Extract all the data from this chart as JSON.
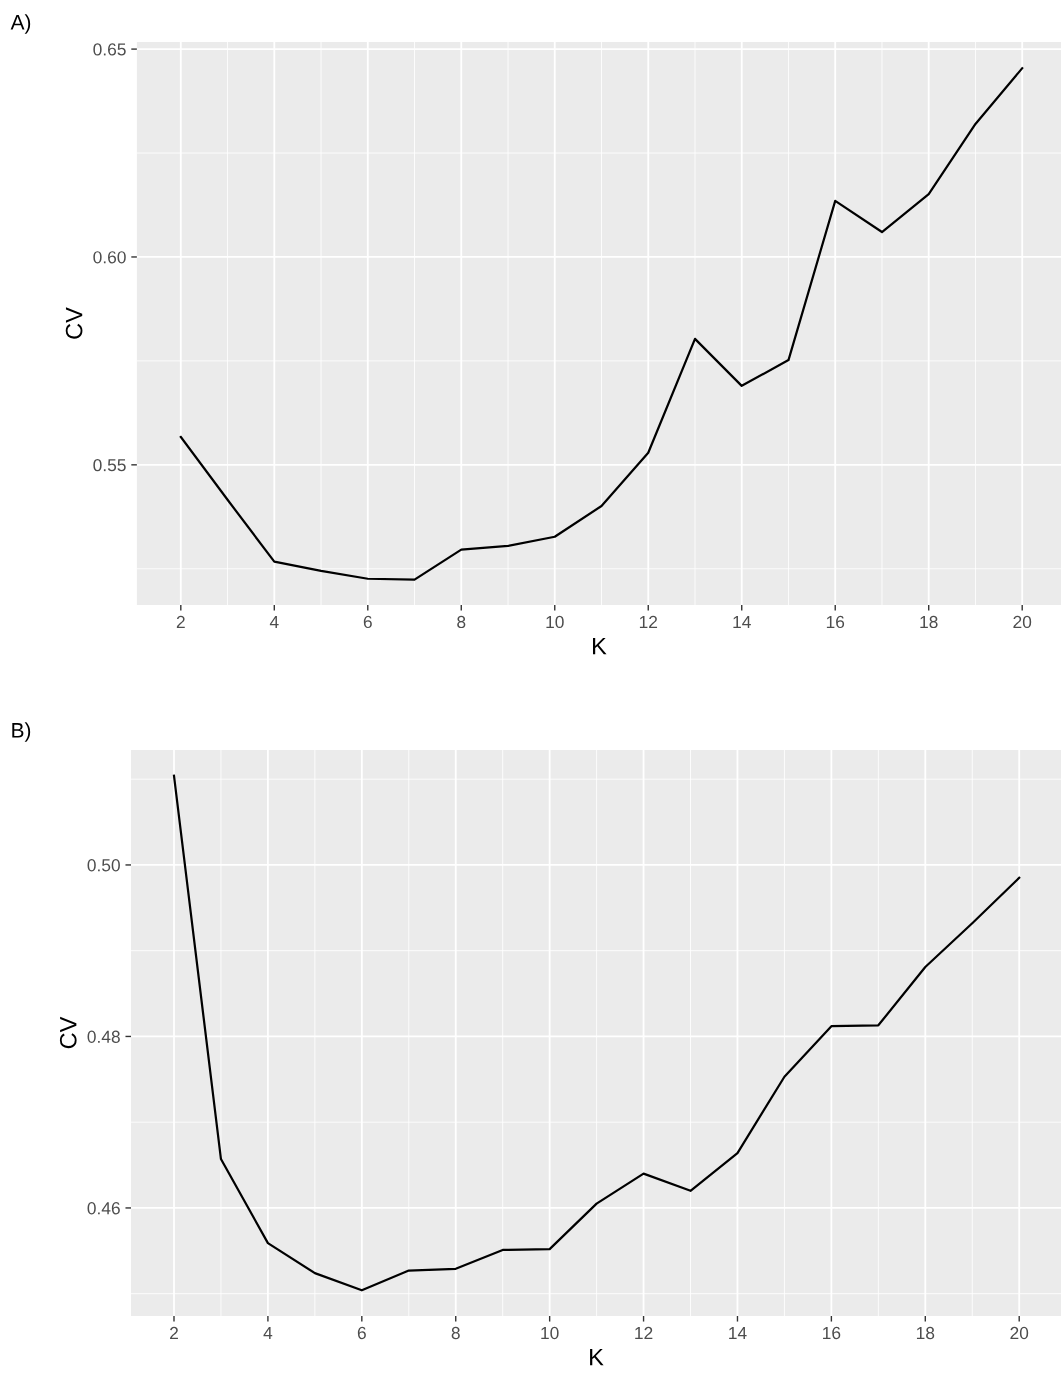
{
  "chart_data": [
    {
      "type": "line",
      "title": "A)",
      "xlabel": "K",
      "ylabel": "CV",
      "x": [
        2,
        3,
        4,
        5,
        6,
        7,
        8,
        9,
        10,
        11,
        12,
        13,
        14,
        15,
        16,
        17,
        18,
        19,
        20
      ],
      "series": [
        {
          "color": "#000000",
          "values": [
            0.5567,
            0.5416,
            0.5267,
            0.5245,
            0.5226,
            0.5224,
            0.5296,
            0.5305,
            0.5327,
            0.5401,
            0.5529,
            0.5803,
            0.569,
            0.5752,
            0.6135,
            0.606,
            0.6151,
            0.632,
            0.6454
          ]
        }
      ],
      "xlim": [
        1.06,
        20.83
      ],
      "ylim": [
        0.5163,
        0.6517
      ],
      "xticks": [
        2,
        4,
        6,
        8,
        10,
        12,
        14,
        16,
        18,
        20
      ],
      "yticks": [
        0.55,
        {
          "value": 0.6,
          "label": "0.60"
        },
        0.65
      ],
      "grid": true
    },
    {
      "type": "line",
      "title": "B)",
      "xlabel": "K",
      "ylabel": "CV",
      "x": [
        2,
        3,
        4,
        5,
        6,
        7,
        8,
        9,
        10,
        11,
        12,
        13,
        14,
        15,
        16,
        17,
        18,
        19,
        20
      ],
      "series": [
        {
          "color": "#000000",
          "values": [
            0.5104,
            0.4657,
            0.4559,
            0.4524,
            0.4504,
            0.4527,
            0.4529,
            0.4551,
            0.4552,
            0.4605,
            0.464,
            0.462,
            0.4664,
            0.4753,
            0.4812,
            0.4813,
            0.4881,
            0.4932,
            0.4985
          ]
        }
      ],
      "xlim": [
        1.085,
        20.89
      ],
      "ylim": [
        0.4474,
        0.5134
      ],
      "xticks": [
        2,
        4,
        6,
        8,
        10,
        12,
        14,
        16,
        18,
        20
      ],
      "yticks": [
        0.46,
        0.48,
        {
          "value": 0.5,
          "label": "0.50"
        }
      ],
      "grid": true
    }
  ]
}
